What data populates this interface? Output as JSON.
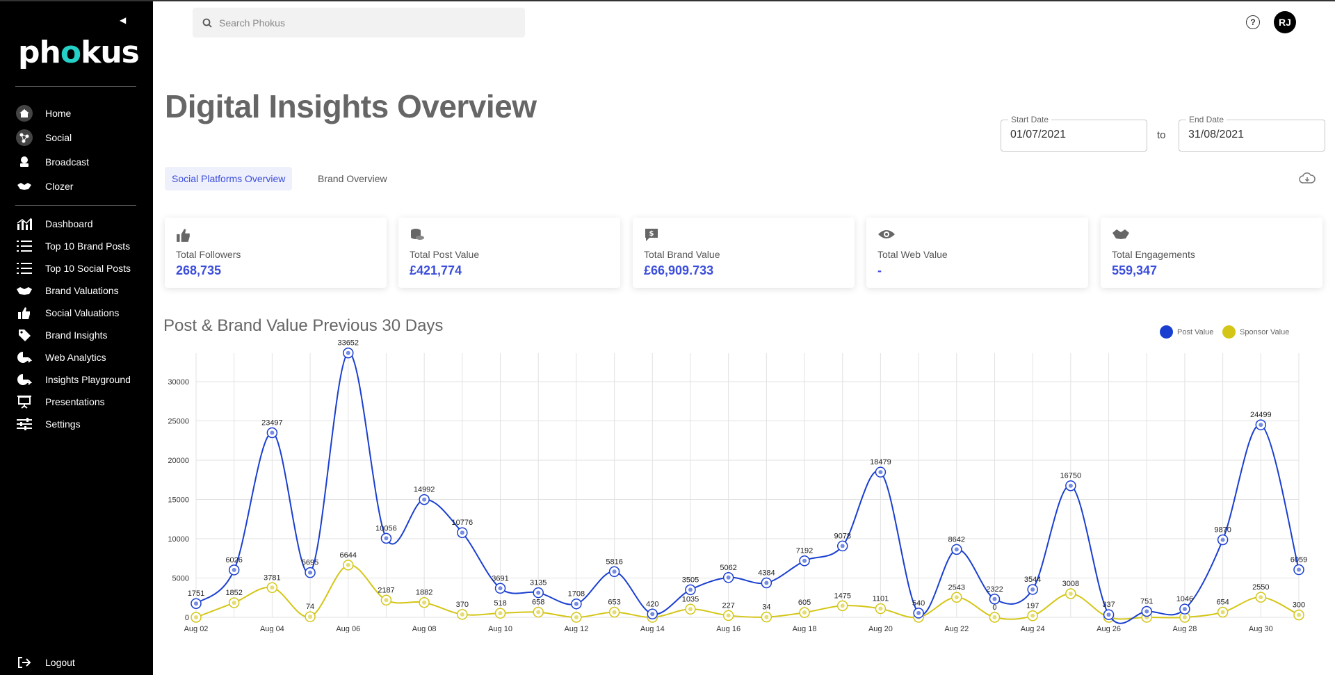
{
  "app": {
    "brand": "phokus",
    "search_placeholder": "Search Phokus",
    "help": "?",
    "user_initials": "RJ"
  },
  "sidebar": {
    "group1": [
      {
        "label": "Home",
        "icon": "home-icon"
      },
      {
        "label": "Social",
        "icon": "social-icon"
      },
      {
        "label": "Broadcast",
        "icon": "broadcast-icon"
      },
      {
        "label": "Clozer",
        "icon": "handshake-icon"
      }
    ],
    "group2": [
      {
        "label": "Dashboard",
        "icon": "bar-chart-icon"
      },
      {
        "label": "Top 10 Brand Posts",
        "icon": "list-icon"
      },
      {
        "label": "Top 10 Social Posts",
        "icon": "list-icon"
      },
      {
        "label": "Brand Valuations",
        "icon": "handshake-icon"
      },
      {
        "label": "Social Valuations",
        "icon": "thumbs-up-icon"
      },
      {
        "label": "Brand Insights",
        "icon": "tag-icon"
      },
      {
        "label": "Web Analytics",
        "icon": "pie-arrow-icon"
      },
      {
        "label": "Insights Playground",
        "icon": "pie-arrow-icon"
      },
      {
        "label": "Presentations",
        "icon": "presentation-icon"
      },
      {
        "label": "Settings",
        "icon": "sliders-icon"
      }
    ],
    "logout": "Logout"
  },
  "header": {
    "title": "Digital Insights Overview",
    "start_date_label": "Start Date",
    "start_date": "01/07/2021",
    "to": "to",
    "end_date_label": "End Date",
    "end_date": "31/08/2021"
  },
  "tabs": [
    {
      "label": "Social Platforms Overview",
      "active": true
    },
    {
      "label": "Brand Overview",
      "active": false
    }
  ],
  "cards": [
    {
      "title": "Total Followers",
      "value": "268,735",
      "icon": "thumbs-up-icon"
    },
    {
      "title": "Total Post Value",
      "value": "£421,774",
      "icon": "coins-icon"
    },
    {
      "title": "Total Brand Value",
      "value": "£66,909.733",
      "icon": "dollar-chat-icon"
    },
    {
      "title": "Total Web Value",
      "value": "-",
      "icon": "eye-icon"
    },
    {
      "title": "Total Engagements",
      "value": "559,347",
      "icon": "handshake-icon"
    }
  ],
  "colors": {
    "accent": "#3b4ddb",
    "post": "#1a3fd0",
    "sponsor": "#d4c616",
    "sidebar": "#000000"
  },
  "chart_data": {
    "type": "line",
    "title": "Post & Brand Value Previous 30 Days",
    "xlabel": "",
    "ylabel": "",
    "ylim": [
      0,
      35000
    ],
    "yticks": [
      0,
      5000,
      10000,
      15000,
      20000,
      25000,
      30000
    ],
    "x": [
      "Aug 02",
      "Aug 03",
      "Aug 04",
      "Aug 05",
      "Aug 06",
      "Aug 07",
      "Aug 08",
      "Aug 09",
      "Aug 10",
      "Aug 11",
      "Aug 12",
      "Aug 13",
      "Aug 14",
      "Aug 15",
      "Aug 16",
      "Aug 17",
      "Aug 18",
      "Aug 19",
      "Aug 20",
      "Aug 21",
      "Aug 22",
      "Aug 23",
      "Aug 24",
      "Aug 25",
      "Aug 26",
      "Aug 27",
      "Aug 28",
      "Aug 29",
      "Aug 30",
      "Aug 31"
    ],
    "xtick_labels": [
      "Aug 02",
      "Aug 04",
      "Aug 06",
      "Aug 08",
      "Aug 10",
      "Aug 12",
      "Aug 14",
      "Aug 16",
      "Aug 18",
      "Aug 20",
      "Aug 22",
      "Aug 24",
      "Aug 26",
      "Aug 28",
      "Aug 30"
    ],
    "legend_position": "top-right",
    "grid": true,
    "series": [
      {
        "name": "Post Value",
        "color": "#1a3fd0",
        "values": [
          1751,
          6026,
          23497,
          5695,
          33652,
          10056,
          14992,
          10776,
          3691,
          3135,
          1708,
          5816,
          420,
          3505,
          5062,
          4384,
          7192,
          9078,
          18479,
          540,
          8642,
          2322,
          3544,
          16750,
          337,
          751,
          1046,
          9870,
          24499,
          6059
        ]
      },
      {
        "name": "Sponsor Value",
        "color": "#d4c616",
        "values": [
          null,
          1852,
          3781,
          74,
          6644,
          2187,
          1882,
          370,
          518,
          658,
          null,
          653,
          null,
          1035,
          227,
          34,
          605,
          1475,
          1101,
          null,
          2543,
          0,
          197,
          3008,
          null,
          null,
          null,
          654,
          2550,
          300
        ]
      }
    ]
  }
}
